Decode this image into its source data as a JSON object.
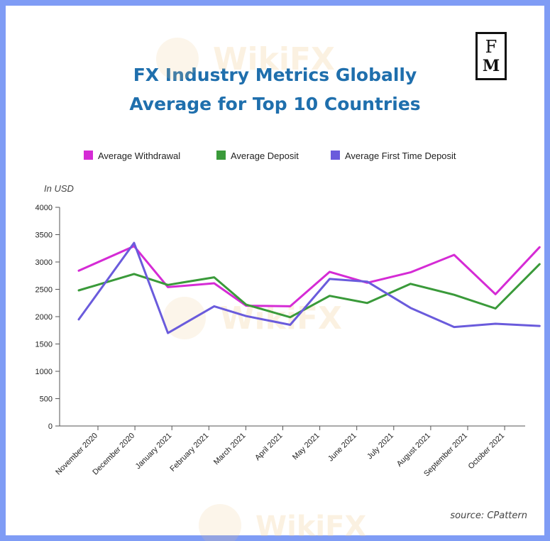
{
  "logo": {
    "line1": "F",
    "line2": "M"
  },
  "chart_data": {
    "type": "line",
    "title": "FX Industry Metrics Globally",
    "subtitle": "Average for Top 10 Countries",
    "ylabel": "In USD",
    "xlabel": "",
    "ylim": [
      0,
      4000
    ],
    "yticks": [
      0,
      500,
      1000,
      1500,
      2000,
      2500,
      3000,
      3500,
      4000
    ],
    "grid": false,
    "legend_position": "top",
    "categories": [
      "November 2020",
      "December 2020",
      "January 2021",
      "February 2021",
      "March 2021",
      "April 2021",
      "May 2021",
      "June 2021",
      "July 2021",
      "August 2021",
      "September 2021",
      "October 2021"
    ],
    "x_points": [
      0,
      1.47,
      2.37,
      3.6,
      4.45,
      5.62,
      6.67,
      7.67,
      8.82,
      9.98,
      11.08,
      12.25
    ],
    "series": [
      {
        "name": "Average Withdrawal",
        "color": "#d52bd5",
        "values": [
          2840,
          3290,
          2540,
          2610,
          2200,
          2190,
          2820,
          2620,
          2810,
          3130,
          2410,
          3270
        ]
      },
      {
        "name": "Average Deposit",
        "color": "#3a9a3a",
        "values": [
          2480,
          2780,
          2580,
          2720,
          2220,
          1990,
          2380,
          2250,
          2600,
          2400,
          2150,
          2960
        ]
      },
      {
        "name": "Average First Time Deposit",
        "color": "#6a5bdc",
        "values": [
          1950,
          3350,
          1700,
          2190,
          2010,
          1850,
          2690,
          2640,
          2160,
          1810,
          1870,
          1830
        ]
      }
    ]
  },
  "source": "source: CPattern",
  "watermark": "WikiFX"
}
